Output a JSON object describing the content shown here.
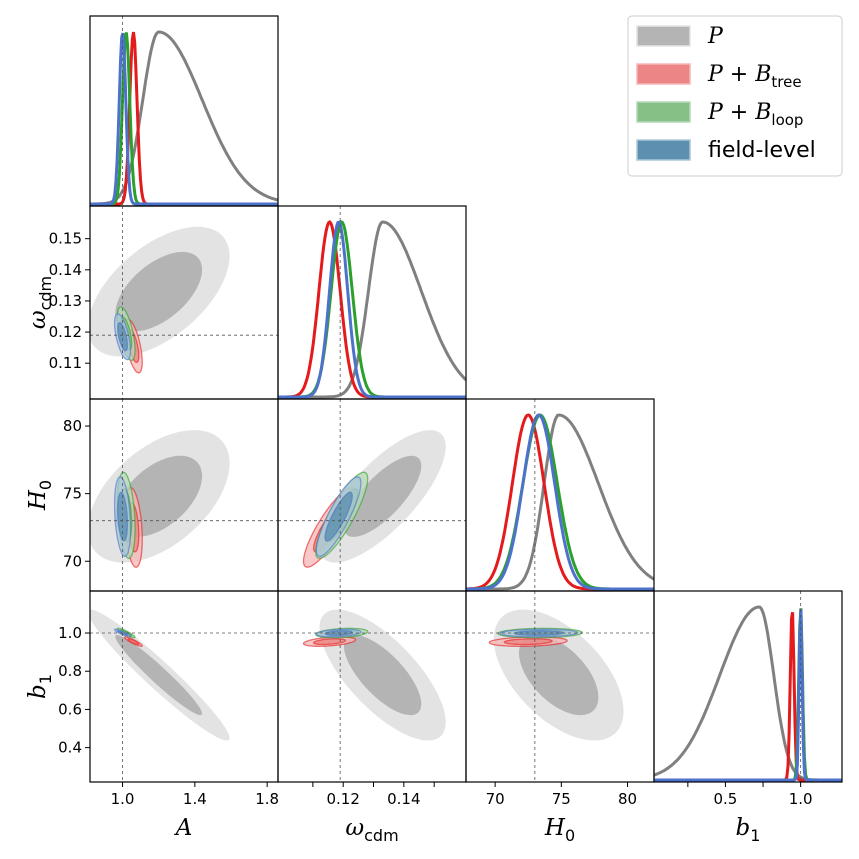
{
  "chart_data": {
    "type": "corner",
    "parameters": [
      {
        "key": "A",
        "symbol": "A",
        "subscript": "",
        "range": [
          0.82,
          1.86
        ],
        "ticks": [
          1.0,
          1.4,
          1.8
        ],
        "tick_labels": [
          "1.0",
          "1.4",
          "1.8"
        ],
        "truth": 1.0
      },
      {
        "key": "omega_cdm",
        "symbol": "ω",
        "subscript": "cdm",
        "range": [
          0.0985,
          0.1605
        ],
        "ticks": [
          0.11,
          0.12,
          0.13,
          0.14,
          0.15
        ],
        "tick_labels": [
          "0.11",
          "0.12",
          "0.13",
          "0.14",
          "0.15"
        ],
        "tick_labels_x": [
          "",
          "0.12",
          "",
          "0.14",
          ""
        ],
        "truth": 0.119
      },
      {
        "key": "H0",
        "symbol": "H",
        "subscript": "0",
        "range": [
          67.8,
          82.0
        ],
        "ticks": [
          70,
          75,
          80
        ],
        "tick_labels": [
          "70",
          "75",
          "80"
        ],
        "truth": 73.0
      },
      {
        "key": "b1",
        "symbol": "b",
        "subscript": "1",
        "range": [
          0.22,
          1.22
        ],
        "ticks": [
          0.4,
          0.6,
          0.8,
          1.0
        ],
        "tick_labels": [
          "0.4",
          "0.6",
          "0.8",
          "1.0"
        ],
        "tick_labels_x": [
          "",
          "0.5",
          "",
          "1.0"
        ],
        "truth": 1.0
      }
    ],
    "series": [
      {
        "id": "P",
        "label_main": "P",
        "label_sub": "",
        "color": "#808080",
        "means": [
          1.2,
          0.133,
          74.8,
          0.78
        ],
        "sigmas": [
          0.16,
          0.0085,
          2.0,
          0.14
        ],
        "corr": {
          "A-omega_cdm": 0.55,
          "A-H0": 0.5,
          "A-b1": -0.96,
          "omega_cdm-H0": 0.75,
          "omega_cdm-b1": -0.72,
          "H0-b1": -0.55
        },
        "contour_fill": [
          "#e3e3e3",
          "#b4b4b4"
        ]
      },
      {
        "id": "P_Btree",
        "label_main": "P + B",
        "label_sub": "tree",
        "color": "#e41a1c",
        "means": [
          1.06,
          0.1155,
          72.5,
          0.955
        ],
        "sigmas": [
          0.02,
          0.0035,
          1.2,
          0.01
        ],
        "corr": {
          "A-omega_cdm": -0.6,
          "A-H0": -0.3,
          "A-b1": -0.9,
          "omega_cdm-H0": 0.85,
          "omega_cdm-b1": 0.4,
          "H0-b1": 0.2
        },
        "contour_fill": [
          "#f6b7b5",
          "#ec8585"
        ]
      },
      {
        "id": "P_Bloop",
        "label_main": "P + B",
        "label_sub": "loop",
        "color": "#2ca02c",
        "means": [
          1.02,
          0.1195,
          73.4,
          1.0
        ],
        "sigmas": [
          0.02,
          0.0035,
          1.3,
          0.01
        ],
        "corr": {
          "A-omega_cdm": -0.6,
          "A-H0": -0.3,
          "A-b1": -0.9,
          "omega_cdm-H0": 0.85,
          "omega_cdm-b1": 0.3,
          "H0-b1": 0.1
        },
        "contour_fill": [
          "#b7d9b7",
          "#86c086"
        ]
      },
      {
        "id": "field_level",
        "label_main": "field-level",
        "label_sub": "",
        "color": "#4d72cc",
        "means": [
          1.0,
          0.1185,
          73.3,
          1.0
        ],
        "sigmas": [
          0.018,
          0.003,
          1.2,
          0.008
        ],
        "corr": {
          "A-omega_cdm": -0.6,
          "A-H0": -0.3,
          "A-b1": -0.9,
          "omega_cdm-H0": 0.85,
          "omega_cdm-b1": 0.3,
          "H0-b1": 0.1
        },
        "contour_fill": [
          "#a9c7d8",
          "#5d8fb0"
        ]
      }
    ],
    "legend_position": "top-right",
    "truth_lines": true,
    "grid": false
  }
}
